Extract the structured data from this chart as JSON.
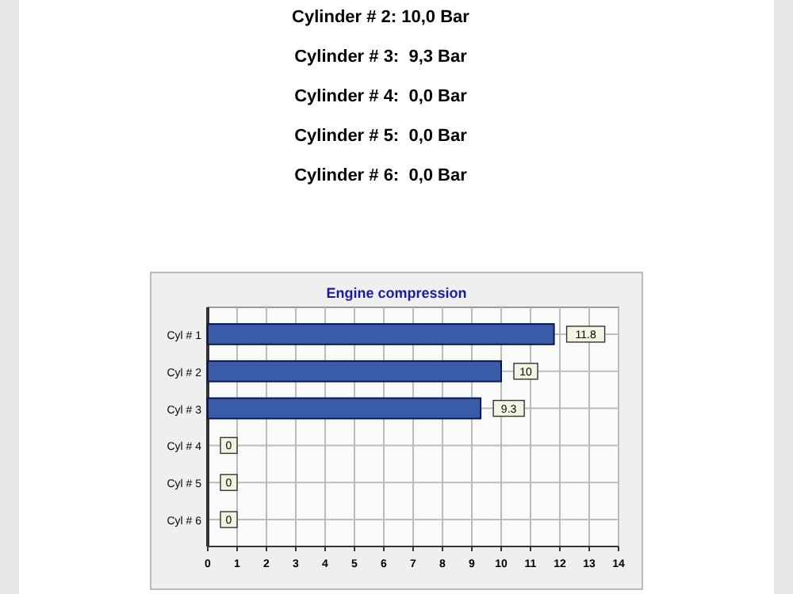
{
  "chart_data": {
    "type": "bar",
    "orientation": "horizontal",
    "title": "Engine compression",
    "annotations": [
      "Cylinder # 2: 10,0 Bar",
      "Cylinder # 3:  9,3 Bar",
      "Cylinder # 4:  0,0 Bar",
      "Cylinder # 5:  0,0 Bar",
      "Cylinder # 6:  0,0 Bar"
    ],
    "categories": [
      "Cyl # 1",
      "Cyl # 2",
      "Cyl # 3",
      "Cyl # 4",
      "Cyl # 5",
      "Cyl # 6"
    ],
    "values": [
      11.8,
      10,
      9.3,
      0,
      0,
      0
    ],
    "color": "#3a5ba8",
    "xlim": [
      0,
      14
    ],
    "xticks": [
      0,
      1,
      2,
      3,
      4,
      5,
      6,
      7,
      8,
      9,
      10,
      11,
      12,
      13,
      14
    ],
    "grid": true,
    "data_labels": true
  }
}
